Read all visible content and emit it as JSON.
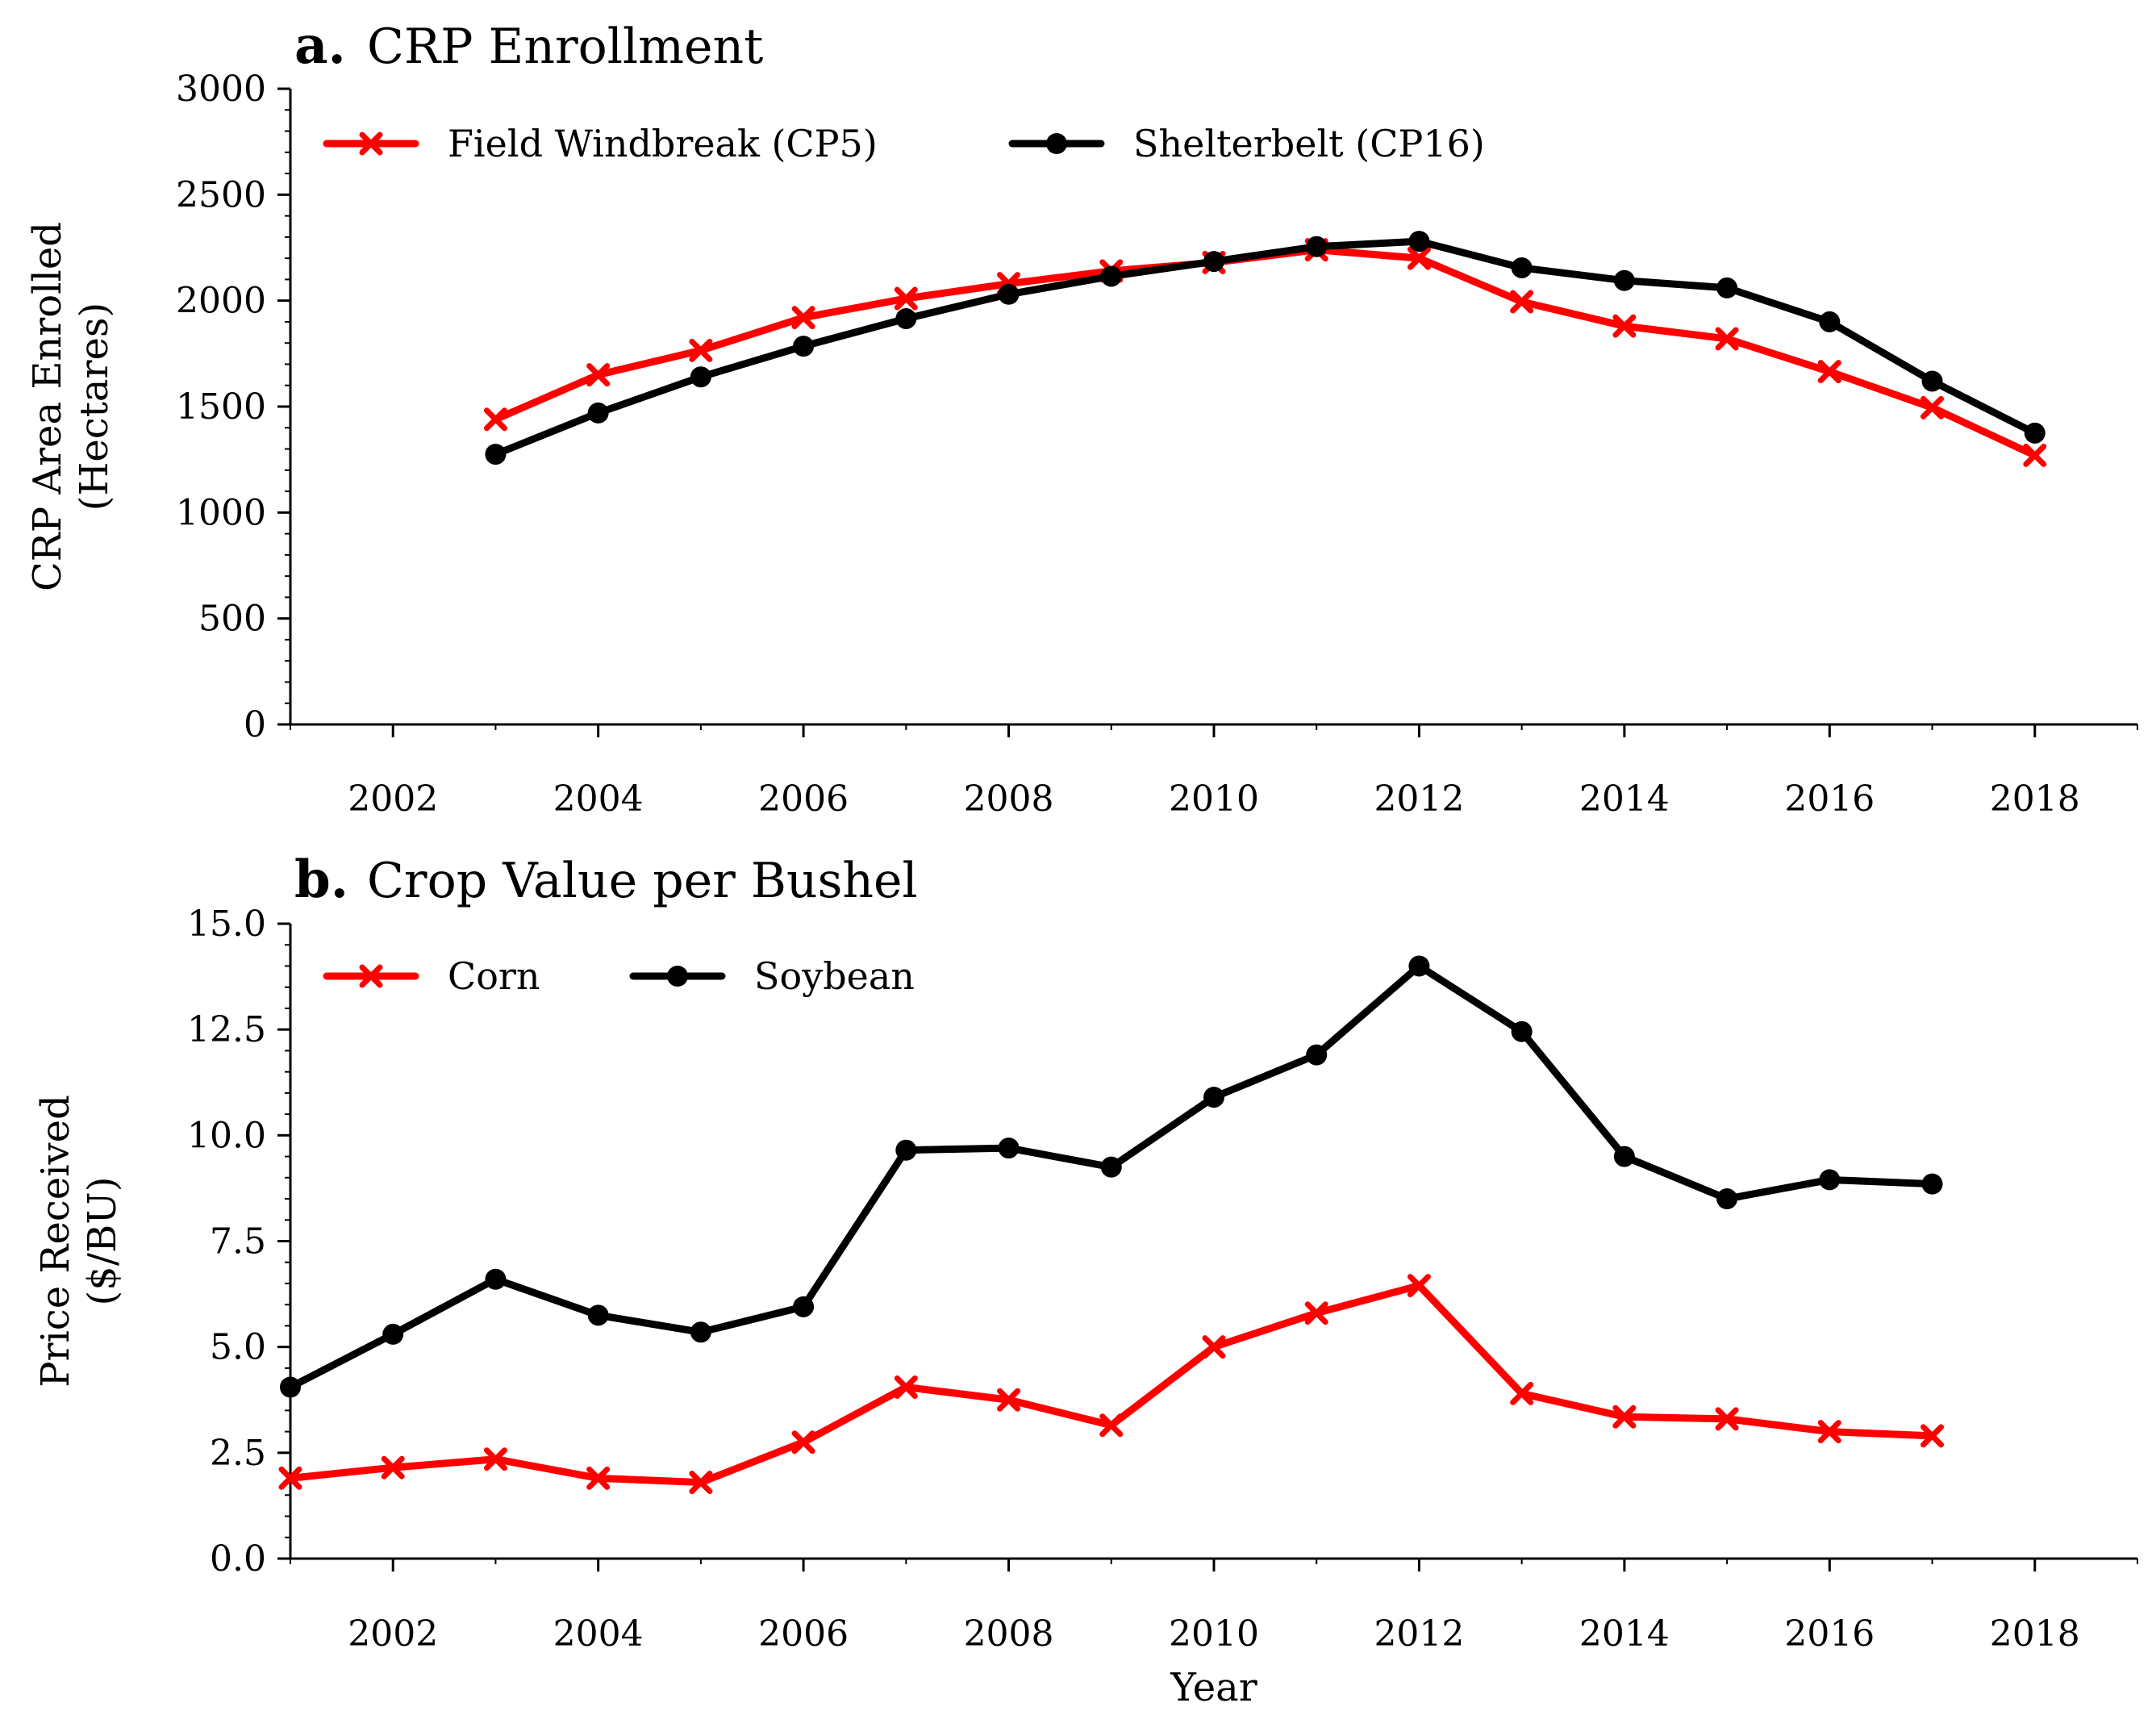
{
  "chart_data": [
    {
      "type": "line",
      "panel_letter": "a.",
      "title": "CRP Enrollment",
      "ylabel_line1": "CRP Area Enrolled",
      "ylabel_line2": "(Hectares)",
      "xlabel": "",
      "xlim": [
        2001,
        2019
      ],
      "ylim": [
        0,
        3000
      ],
      "xticks": [
        2002,
        2004,
        2006,
        2008,
        2010,
        2012,
        2014,
        2016,
        2018
      ],
      "yticks": [
        0,
        500,
        1000,
        1500,
        2000,
        2500,
        3000
      ],
      "ytick_labels": [
        "0",
        "500",
        "1000",
        "1500",
        "2000",
        "2500",
        "3000"
      ],
      "legend_position": "top-left",
      "series": [
        {
          "name": "Field Windbreak (CP5)",
          "color": "#ff0000",
          "marker": "x",
          "x": [
            2003,
            2004,
            2005,
            2006,
            2007,
            2008,
            2009,
            2010,
            2011,
            2012,
            2013,
            2014,
            2015,
            2016,
            2017,
            2018
          ],
          "values": [
            1440,
            1650,
            1765,
            1920,
            2010,
            2080,
            2140,
            2180,
            2240,
            2200,
            1995,
            1880,
            1820,
            1665,
            1495,
            1270
          ]
        },
        {
          "name": "Shelterbelt (CP16)",
          "color": "#000000",
          "marker": "o",
          "x": [
            2003,
            2004,
            2005,
            2006,
            2007,
            2008,
            2009,
            2010,
            2011,
            2012,
            2013,
            2014,
            2015,
            2016,
            2017,
            2018
          ],
          "values": [
            1275,
            1470,
            1640,
            1785,
            1915,
            2030,
            2115,
            2185,
            2255,
            2280,
            2155,
            2095,
            2060,
            1900,
            1620,
            1375
          ]
        }
      ]
    },
    {
      "type": "line",
      "panel_letter": "b.",
      "title": "Crop Value per Bushel",
      "ylabel_line1": "Price Received",
      "ylabel_line2": "($/BU)",
      "xlabel": "Year",
      "xlim": [
        2001,
        2019
      ],
      "ylim": [
        0,
        15
      ],
      "xticks": [
        2002,
        2004,
        2006,
        2008,
        2010,
        2012,
        2014,
        2016,
        2018
      ],
      "yticks": [
        0,
        2.5,
        5,
        7.5,
        10,
        12.5,
        15
      ],
      "ytick_labels": [
        "0.0",
        "2.5",
        "5.0",
        "7.5",
        "10.0",
        "12.5",
        "15.0"
      ],
      "legend_position": "top-left",
      "series": [
        {
          "name": "Corn",
          "color": "#ff0000",
          "marker": "x",
          "x": [
            2001,
            2002,
            2003,
            2004,
            2005,
            2006,
            2007,
            2008,
            2009,
            2010,
            2011,
            2012,
            2013,
            2014,
            2015,
            2016,
            2017
          ],
          "values": [
            1.9,
            2.15,
            2.35,
            1.9,
            1.8,
            2.75,
            4.05,
            3.75,
            3.15,
            5.0,
            5.8,
            6.45,
            3.9,
            3.35,
            3.3,
            3.0,
            2.9
          ]
        },
        {
          "name": "Soybean",
          "color": "#000000",
          "marker": "o",
          "x": [
            2001,
            2002,
            2003,
            2004,
            2005,
            2006,
            2007,
            2008,
            2009,
            2010,
            2011,
            2012,
            2013,
            2014,
            2015,
            2016,
            2017
          ],
          "values": [
            4.05,
            5.3,
            6.6,
            5.75,
            5.35,
            5.95,
            9.65,
            9.7,
            9.25,
            10.9,
            11.9,
            14.0,
            12.45,
            9.5,
            8.5,
            8.95,
            8.85
          ]
        }
      ]
    }
  ]
}
